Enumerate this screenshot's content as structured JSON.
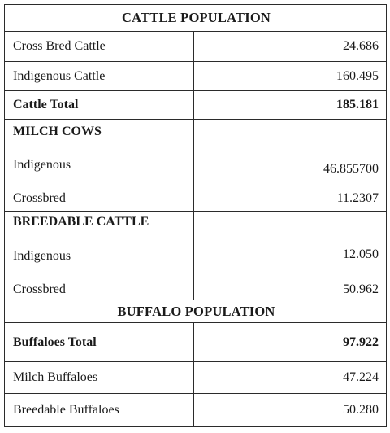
{
  "cattle_population": {
    "title": "CATTLE POPULATION",
    "rows": [
      {
        "label": "Cross Bred Cattle",
        "value": "24.686"
      },
      {
        "label": "Indigenous Cattle",
        "value": "160.495"
      }
    ],
    "total": {
      "label": "Cattle Total",
      "value": "185.181"
    }
  },
  "milch_cows": {
    "title": "MILCH COWS",
    "rows": [
      {
        "label": "Indigenous",
        "value": "46.855700"
      },
      {
        "label": "Crossbred",
        "value": "11.2307"
      }
    ]
  },
  "breedable_cattle": {
    "title": "BREEDABLE CATTLE",
    "rows": [
      {
        "label": "Indigenous",
        "value": "12.050"
      },
      {
        "label": "Crossbred",
        "value": "50.962"
      }
    ]
  },
  "buffalo_population": {
    "title": "BUFFALO POPULATION",
    "total": {
      "label": "Buffaloes Total",
      "value": "97.922"
    },
    "rows": [
      {
        "label": "Milch Buffaloes",
        "value": "47.224"
      },
      {
        "label": "Breedable Buffaloes",
        "value": "50.280"
      }
    ]
  }
}
